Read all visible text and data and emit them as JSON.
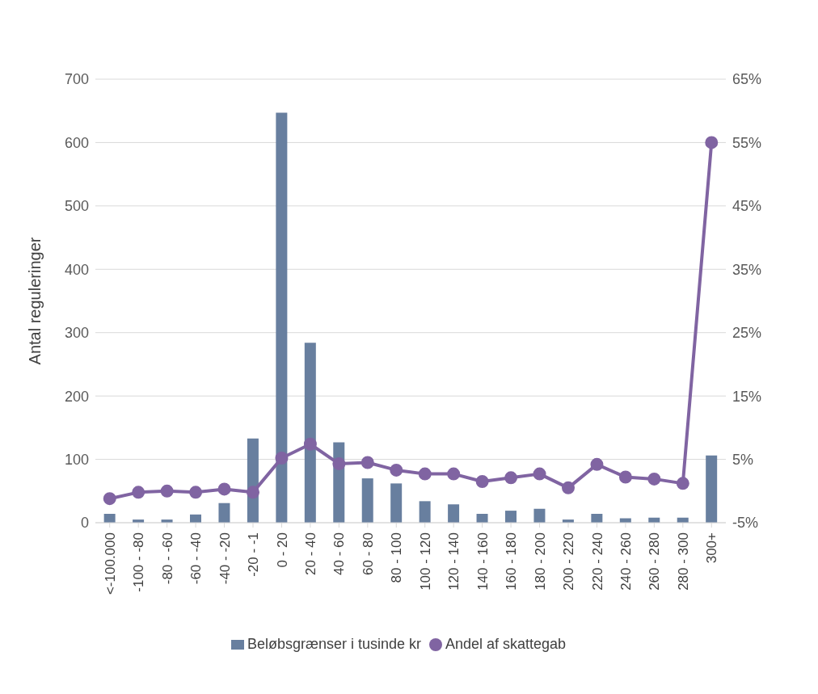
{
  "chart_data": {
    "type": "bar",
    "ylabel": "Antal reguleringer",
    "categories": [
      "<-100.000",
      "-100 - -80",
      "-80 - -60",
      "-60 - -40",
      "-40 - -20",
      "-20 - -1",
      "0 - 20",
      "20 - 40",
      "40 - 60",
      "60 - 80",
      "80 - 100",
      "100 - 120",
      "120 - 140",
      "140 - 160",
      "160 - 180",
      "180 - 200",
      "200 - 220",
      "220 - 240",
      "240 - 260",
      "260 - 280",
      "280 - 300",
      "300+"
    ],
    "series": [
      {
        "name": "Beløbsgrænser i tusinde kr",
        "color": "#687f9f",
        "values": [
          14,
          5,
          5,
          13,
          31,
          133,
          647,
          284,
          127,
          70,
          62,
          34,
          29,
          14,
          19,
          22,
          5,
          14,
          7,
          8,
          8,
          106
        ]
      },
      {
        "name": "Andel af skattegab",
        "type": "line",
        "axis": "y2",
        "color": "#8064a2",
        "values": [
          -1.2,
          -0.2,
          0.0,
          -0.2,
          0.3,
          -0.2,
          5.2,
          7.4,
          4.3,
          4.5,
          3.3,
          2.7,
          2.7,
          1.5,
          2.1,
          2.7,
          0.5,
          4.2,
          2.2,
          1.9,
          1.2,
          55
        ]
      }
    ],
    "ylim": [
      0,
      700
    ],
    "yticks": [
      0,
      100,
      200,
      300,
      400,
      500,
      600,
      700
    ],
    "y2lim": [
      -5,
      65
    ],
    "y2ticks": [
      {
        "value": -5,
        "label": "-5%"
      },
      {
        "value": 5,
        "label": "5%"
      },
      {
        "value": 15,
        "label": "15%"
      },
      {
        "value": 25,
        "label": "25%"
      },
      {
        "value": 35,
        "label": "35%"
      },
      {
        "value": 45,
        "label": "45%"
      },
      {
        "value": 55,
        "label": "55%"
      },
      {
        "value": 65,
        "label": "65%"
      }
    ],
    "grid": "y",
    "legend": "bottom",
    "marker": "circle"
  }
}
